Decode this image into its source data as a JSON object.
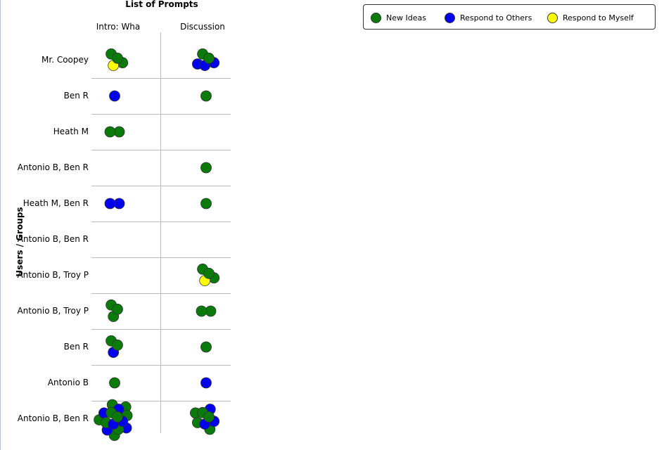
{
  "chart_data": {
    "type": "scatter",
    "title": "List of Prompts",
    "ylabel": "Users / Groups",
    "columns": [
      "Intro: Wha",
      "Discussion"
    ],
    "rows": [
      "Mr. Coopey",
      "Ben R",
      "Heath M",
      "Antonio B, Ben R",
      "Heath M, Ben R",
      "Antonio B, Ben R",
      "Antonio B, Troy P",
      "Antonio B, Troy P",
      "Ben R",
      "Antonio B",
      "Antonio B, Ben R"
    ],
    "series": [
      {
        "name": "New Ideas",
        "color": "#0a7a0a"
      },
      {
        "name": "Respond to Others",
        "color": "#0000ee"
      },
      {
        "name": "Respond to Myself",
        "color": "#ffff00"
      }
    ],
    "legend_position": "top-right",
    "cells": [
      {
        "row": 0,
        "col": 0,
        "new_ideas": 3,
        "respond_to_others": 0,
        "respond_to_myself": 1
      },
      {
        "row": 0,
        "col": 1,
        "new_ideas": 2,
        "respond_to_others": 3,
        "respond_to_myself": 0
      },
      {
        "row": 1,
        "col": 0,
        "new_ideas": 0,
        "respond_to_others": 1,
        "respond_to_myself": 0
      },
      {
        "row": 1,
        "col": 1,
        "new_ideas": 1,
        "respond_to_others": 0,
        "respond_to_myself": 0
      },
      {
        "row": 2,
        "col": 0,
        "new_ideas": 2,
        "respond_to_others": 0,
        "respond_to_myself": 0
      },
      {
        "row": 2,
        "col": 1,
        "new_ideas": 0,
        "respond_to_others": 0,
        "respond_to_myself": 0
      },
      {
        "row": 3,
        "col": 0,
        "new_ideas": 0,
        "respond_to_others": 0,
        "respond_to_myself": 0
      },
      {
        "row": 3,
        "col": 1,
        "new_ideas": 1,
        "respond_to_others": 0,
        "respond_to_myself": 0
      },
      {
        "row": 4,
        "col": 0,
        "new_ideas": 0,
        "respond_to_others": 2,
        "respond_to_myself": 0
      },
      {
        "row": 4,
        "col": 1,
        "new_ideas": 1,
        "respond_to_others": 0,
        "respond_to_myself": 0
      },
      {
        "row": 5,
        "col": 0,
        "new_ideas": 0,
        "respond_to_others": 0,
        "respond_to_myself": 0
      },
      {
        "row": 5,
        "col": 1,
        "new_ideas": 0,
        "respond_to_others": 0,
        "respond_to_myself": 0
      },
      {
        "row": 6,
        "col": 0,
        "new_ideas": 0,
        "respond_to_others": 0,
        "respond_to_myself": 0
      },
      {
        "row": 6,
        "col": 1,
        "new_ideas": 3,
        "respond_to_others": 0,
        "respond_to_myself": 1
      },
      {
        "row": 7,
        "col": 0,
        "new_ideas": 3,
        "respond_to_others": 0,
        "respond_to_myself": 0
      },
      {
        "row": 7,
        "col": 1,
        "new_ideas": 2,
        "respond_to_others": 0,
        "respond_to_myself": 0
      },
      {
        "row": 8,
        "col": 0,
        "new_ideas": 2,
        "respond_to_others": 1,
        "respond_to_myself": 0
      },
      {
        "row": 8,
        "col": 1,
        "new_ideas": 1,
        "respond_to_others": 0,
        "respond_to_myself": 0
      },
      {
        "row": 9,
        "col": 0,
        "new_ideas": 1,
        "respond_to_others": 0,
        "respond_to_myself": 0
      },
      {
        "row": 9,
        "col": 1,
        "new_ideas": 0,
        "respond_to_others": 1,
        "respond_to_myself": 0
      },
      {
        "row": 10,
        "col": 0,
        "new_ideas": 9,
        "respond_to_others": 6,
        "respond_to_myself": 0
      },
      {
        "row": 10,
        "col": 1,
        "new_ideas": 5,
        "respond_to_others": 3,
        "respond_to_myself": 0
      }
    ]
  }
}
